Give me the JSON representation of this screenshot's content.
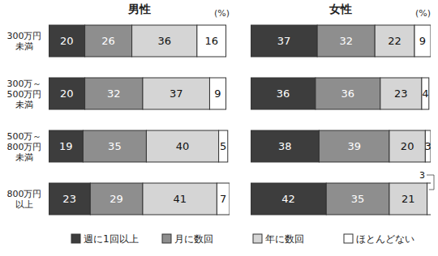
{
  "chart_data": {
    "type": "bar",
    "orientation": "horizontal",
    "stacked": true,
    "data_labels": true,
    "tick_labels": "y",
    "xlim": [
      0,
      100
    ],
    "categories": [
      "300万円\n未満",
      "300万～\n500万円\n未満",
      "500万～\n800万円\n未満",
      "800万円\n以上"
    ],
    "series": [
      {
        "name": "週に1回以上",
        "color": "#3d3d3d"
      },
      {
        "name": "月に数回",
        "color": "#8e8e8e"
      },
      {
        "name": "年に数回",
        "color": "#d5d5d5"
      },
      {
        "name": "ほとんどない",
        "color": "#ffffff"
      }
    ],
    "panels": [
      {
        "title": "男性",
        "unit": "(%)",
        "values": [
          [
            20,
            20,
            19,
            23
          ],
          [
            26,
            32,
            35,
            29
          ],
          [
            36,
            37,
            40,
            41
          ],
          [
            16,
            9,
            5,
            7
          ]
        ]
      },
      {
        "title": "女性",
        "unit": "(%)",
        "values": [
          [
            37,
            36,
            38,
            42
          ],
          [
            32,
            36,
            39,
            35
          ],
          [
            22,
            23,
            20,
            21
          ],
          [
            9,
            4,
            3,
            3
          ]
        ]
      }
    ]
  }
}
